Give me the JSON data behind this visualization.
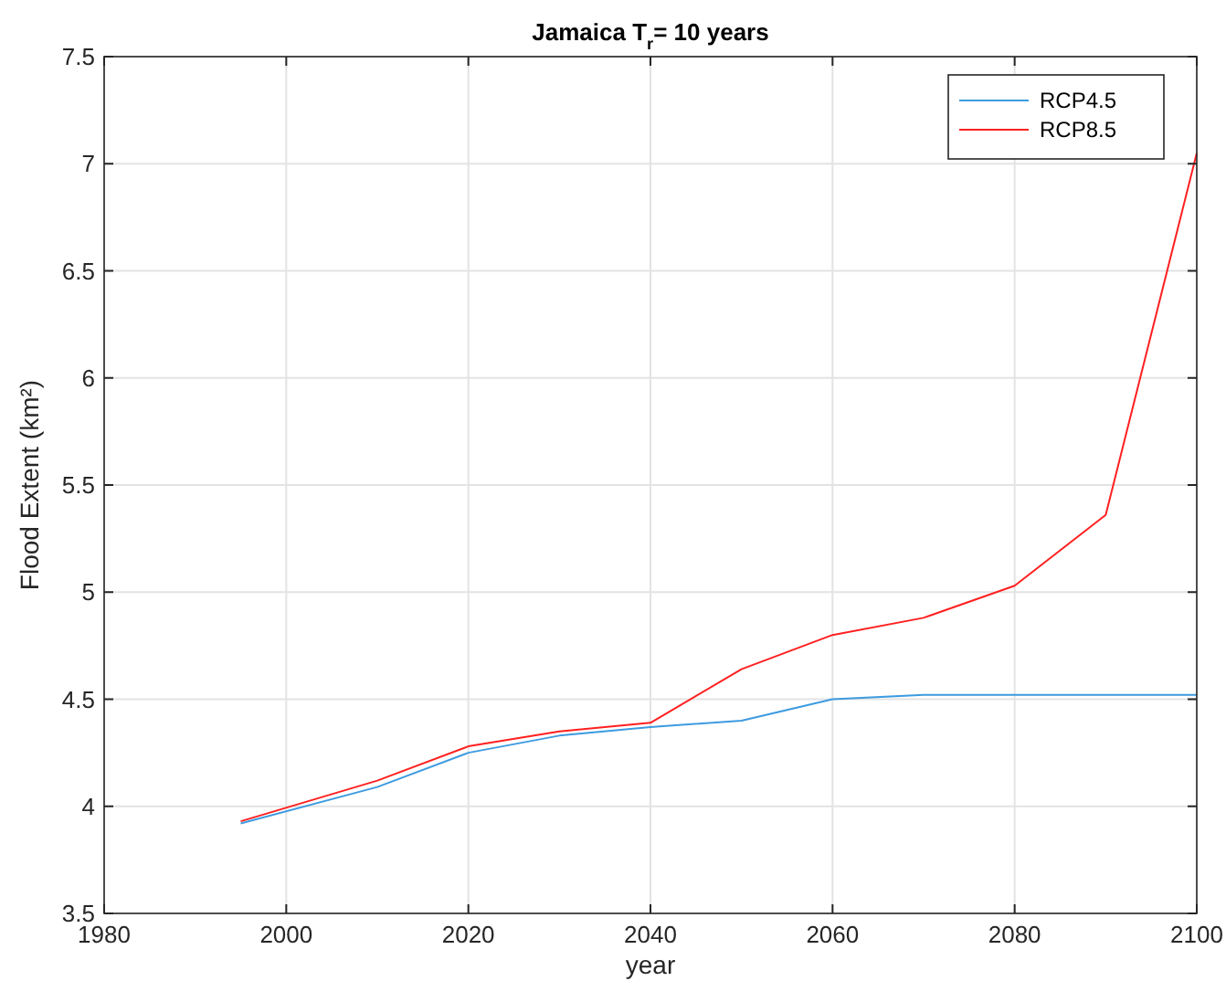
{
  "chart_data": {
    "type": "line",
    "title": "Jamaica T$_{r}$= 10 years",
    "xlabel": "year",
    "ylabel": "Flood Extent (km²)",
    "x": [
      1995,
      2010,
      2020,
      2030,
      2040,
      2050,
      2060,
      2070,
      2080,
      2090,
      2100
    ],
    "series": [
      {
        "name": "RCP4.5",
        "color": "#3d9be0",
        "values": [
          3.92,
          4.09,
          4.25,
          4.33,
          4.37,
          4.4,
          4.5,
          4.52,
          4.52,
          4.52,
          4.52
        ]
      },
      {
        "name": "RCP8.5",
        "color": "#ff2020",
        "values": [
          3.93,
          4.12,
          4.28,
          4.35,
          4.39,
          4.64,
          4.8,
          4.88,
          5.03,
          5.36,
          7.05
        ]
      }
    ],
    "xlim": [
      1980,
      2100
    ],
    "xticks": [
      1980,
      2000,
      2020,
      2040,
      2060,
      2080,
      2100
    ],
    "ylim": [
      3.5,
      7.5
    ],
    "yticks": [
      3.5,
      4,
      4.5,
      5,
      5.5,
      6,
      6.5,
      7,
      7.5
    ],
    "grid": true,
    "legend": "top right",
    "line_style": "solid",
    "marker": "none"
  }
}
